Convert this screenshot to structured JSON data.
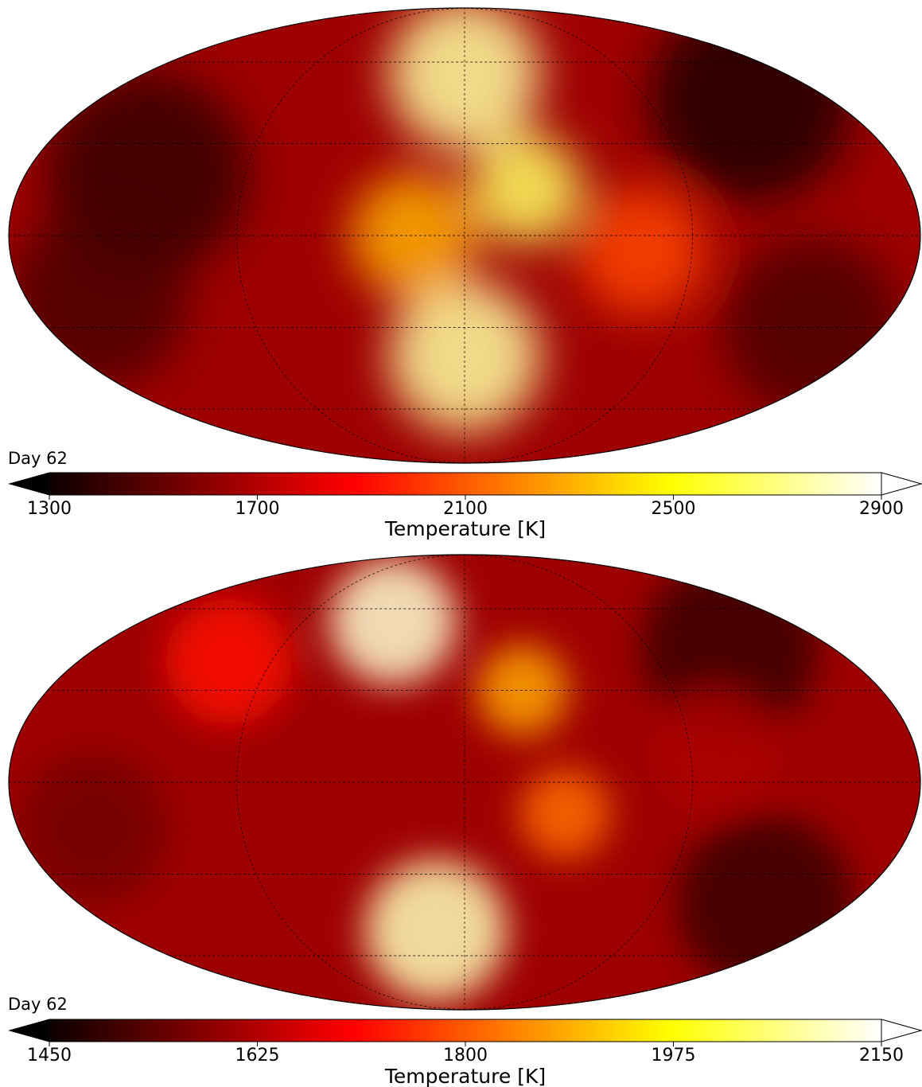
{
  "chart_data": [
    {
      "type": "heatmap",
      "projection": "mollweide",
      "annotation": "Day 62",
      "colormap": "hot",
      "colorbar": {
        "label": "Temperature [K]",
        "range": [
          1300,
          2900
        ],
        "ticks": [
          1300,
          1700,
          2100,
          2500,
          2900
        ],
        "tick_labels": [
          "1300",
          "1700",
          "2100",
          "2500",
          "2900"
        ],
        "extend": "both",
        "orientation": "horizontal",
        "placement": "bottom"
      },
      "grid": true,
      "features": [
        {
          "lon": 0,
          "lat": 55,
          "value": 2750,
          "spread": 30
        },
        {
          "lon": 0,
          "lat": -40,
          "value": 2750,
          "spread": 30
        },
        {
          "lon": 25,
          "lat": 15,
          "value": 2650,
          "spread": 22
        },
        {
          "lon": -20,
          "lat": 0,
          "value": 2300,
          "spread": 25
        },
        {
          "lon": 70,
          "lat": -5,
          "value": 2050,
          "spread": 25
        },
        {
          "lon": -130,
          "lat": 20,
          "value": 1400,
          "spread": 40
        },
        {
          "lon": 140,
          "lat": 45,
          "value": 1350,
          "spread": 40
        },
        {
          "lon": -150,
          "lat": -20,
          "value": 1450,
          "spread": 35
        },
        {
          "lon": 150,
          "lat": -30,
          "value": 1450,
          "spread": 35
        }
      ]
    },
    {
      "type": "heatmap",
      "projection": "mollweide",
      "annotation": "Day 62",
      "colormap": "hot",
      "colorbar": {
        "label": "Temperature [K]",
        "range": [
          1450,
          2150
        ],
        "ticks": [
          1450,
          1625,
          1800,
          1975,
          2150
        ],
        "tick_labels": [
          "1450",
          "1625",
          "1800",
          "1975",
          "2150"
        ],
        "extend": "both",
        "orientation": "horizontal",
        "placement": "bottom"
      },
      "grid": true,
      "features": [
        {
          "lon": -40,
          "lat": 55,
          "value": 2120,
          "spread": 25
        },
        {
          "lon": -15,
          "lat": -50,
          "value": 2100,
          "spread": 28
        },
        {
          "lon": 25,
          "lat": 30,
          "value": 1880,
          "spread": 18
        },
        {
          "lon": 40,
          "lat": -10,
          "value": 1820,
          "spread": 18
        },
        {
          "lon": -110,
          "lat": 40,
          "value": 1720,
          "spread": 25
        },
        {
          "lon": 130,
          "lat": 45,
          "value": 1500,
          "spread": 35
        },
        {
          "lon": 140,
          "lat": -40,
          "value": 1500,
          "spread": 35
        },
        {
          "lon": -150,
          "lat": -15,
          "value": 1560,
          "spread": 30
        },
        {
          "lon": 100,
          "lat": 10,
          "value": 1620,
          "spread": 25
        }
      ]
    }
  ]
}
